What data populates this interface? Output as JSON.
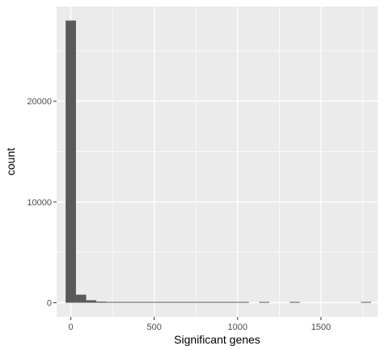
{
  "chart_data": {
    "type": "bar",
    "xlabel": "Significant genes",
    "ylabel": "count",
    "x_ticks": [
      0,
      500,
      1000,
      1500
    ],
    "y_ticks": [
      0,
      10000,
      20000
    ],
    "xlim": [
      -85,
      1840
    ],
    "ylim": [
      -1400,
      29400
    ],
    "bins": [
      {
        "x0": -31,
        "x1": 31,
        "count": 28000
      },
      {
        "x0": 31,
        "x1": 92,
        "count": 800
      },
      {
        "x0": 92,
        "x1": 153,
        "count": 250
      },
      {
        "x0": 153,
        "x1": 214,
        "count": 110
      },
      {
        "x0": 214,
        "x1": 275,
        "count": 60
      },
      {
        "x0": 275,
        "x1": 336,
        "count": 40
      },
      {
        "x0": 336,
        "x1": 397,
        "count": 30
      },
      {
        "x0": 397,
        "x1": 458,
        "count": 25
      },
      {
        "x0": 458,
        "x1": 519,
        "count": 20
      },
      {
        "x0": 519,
        "x1": 580,
        "count": 15
      },
      {
        "x0": 580,
        "x1": 641,
        "count": 10
      },
      {
        "x0": 641,
        "x1": 702,
        "count": 5
      },
      {
        "x0": 702,
        "x1": 763,
        "count": 12
      },
      {
        "x0": 763,
        "x1": 824,
        "count": 3
      },
      {
        "x0": 824,
        "x1": 885,
        "count": 2
      },
      {
        "x0": 885,
        "x1": 946,
        "count": 1
      },
      {
        "x0": 946,
        "x1": 1007,
        "count": 1
      },
      {
        "x0": 1007,
        "x1": 1068,
        "count": 1
      },
      {
        "x0": 1068,
        "x1": 1129,
        "count": 0
      },
      {
        "x0": 1129,
        "x1": 1190,
        "count": 1
      },
      {
        "x0": 1190,
        "x1": 1251,
        "count": 0
      },
      {
        "x0": 1251,
        "x1": 1312,
        "count": 0
      },
      {
        "x0": 1312,
        "x1": 1373,
        "count": 1
      },
      {
        "x0": 1373,
        "x1": 1434,
        "count": 0
      },
      {
        "x0": 1434,
        "x1": 1495,
        "count": 0
      },
      {
        "x0": 1495,
        "x1": 1556,
        "count": 0
      },
      {
        "x0": 1556,
        "x1": 1617,
        "count": 0
      },
      {
        "x0": 1617,
        "x1": 1678,
        "count": 0
      },
      {
        "x0": 1678,
        "x1": 1739,
        "count": 0
      },
      {
        "x0": 1739,
        "x1": 1800,
        "count": 1
      }
    ],
    "grid": true,
    "colors": {
      "panel": "#ebebeb",
      "grid_major": "#ffffff",
      "bar": "#595959",
      "tick_text": "#4d4d4d"
    }
  }
}
